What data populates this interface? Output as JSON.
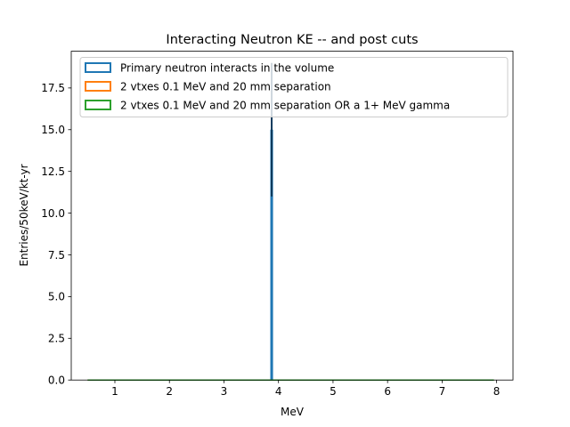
{
  "chart_data": {
    "type": "bar",
    "title": "Interacting Neutron KE -- and post cuts",
    "xlabel": "MeV",
    "ylabel": "Entries/50keV/kt-yr",
    "xlim": [
      0.2,
      8.3
    ],
    "ylim": [
      0,
      19.7
    ],
    "xticks": [
      1,
      2,
      3,
      4,
      5,
      6,
      7,
      8
    ],
    "yticks": [
      0.0,
      2.5,
      5.0,
      7.5,
      10.0,
      12.5,
      15.0,
      17.5
    ],
    "xtick_labels": [
      "1",
      "2",
      "3",
      "4",
      "5",
      "6",
      "7",
      "8"
    ],
    "ytick_labels": [
      "0.0",
      "2.5",
      "5.0",
      "7.5",
      "10.0",
      "12.5",
      "15.0",
      "17.5"
    ],
    "grid": false,
    "legend_position": "upper-left",
    "series": [
      {
        "name": "Primary neutron interacts in the volume",
        "style": "filled-bar",
        "color": "#1f77b4",
        "bins": [
          {
            "x0": 3.85,
            "x1": 3.9,
            "value": 15.0
          }
        ],
        "errorbar": {
          "x": 3.875,
          "y": 15.0,
          "ylow": 11.0,
          "yhigh": 19.0,
          "color": "#0d3a5c"
        }
      },
      {
        "name": "2 vtxes 0.1 MeV and 20 mm separation",
        "style": "step",
        "color": "#ff7f0e",
        "range": [
          0.5,
          7.95
        ],
        "value": 0
      },
      {
        "name": "2 vtxes 0.1 MeV and 20 mm separation OR a 1+ MeV gamma",
        "style": "step",
        "color": "#2ca02c",
        "range": [
          0.5,
          7.95
        ],
        "value": 0
      }
    ]
  }
}
